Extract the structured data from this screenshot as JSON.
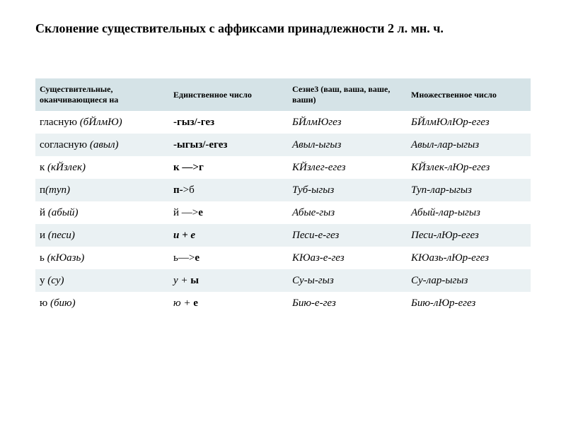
{
  "title": "Склонение существительных с аффиксами принадлежности 2 л. мн. ч.",
  "colors": {
    "header_bg": "#d5e3e7",
    "row_odd_bg": "#ffffff",
    "row_even_bg": "#eaf1f3",
    "text": "#000000"
  },
  "table": {
    "headers": [
      "Существительные, оканчивающиеся на",
      "Единственное  число",
      "Сезне3 (ваш, ваша, ваше, ваши)",
      "Множественное  число"
    ],
    "rows": [
      {
        "c0a": "гласную ",
        "c0b": "(бЙлмЮ)",
        "c1": "-гыз/-гез",
        "c2": "БЙлмЮгез",
        "c3": "БЙлмЮлЮр-егез"
      },
      {
        "c0a": "согласную ",
        "c0b": "(авыл)",
        "c1": "-ыгыз/-егез",
        "c2": "Авыл-ыгыз",
        "c3": "Авыл-лар-ыгыз"
      },
      {
        "c0a": "к ",
        "c0b": "(кЙзлек)",
        "c1": "к —>г",
        "c2": "КЙзлег-егез",
        "c3": "КЙзлек-лЮр-егез"
      },
      {
        "c0a": "п",
        "c0b": "(myn)",
        "c1a": "п-",
        "c1b": ">б",
        "c2": "Туб-ыгыз",
        "c3": "Туп-лар-ыгыз"
      },
      {
        "c0a": "й ",
        "c0b": "(абый)",
        "c1a": "й —>",
        "c1b": "е",
        "c2": "Абые-гыз",
        "c3": "Абый-лар-ыгыз"
      },
      {
        "c0a": "и ",
        "c0b": "(песи)",
        "c1": "и + е",
        "c2": "Песи-е-гез",
        "c3": "Песи-лЮр-егез"
      },
      {
        "c0a": "ь ",
        "c0b": "(кЮазь)",
        "c1a": "ь—>",
        "c1b": "е",
        "c2": "КЮаз-е-гез",
        "c3": "КЮазь-лЮр-егез"
      },
      {
        "c0a": "у ",
        "c0b": "(cy)",
        "c1a": "у + ",
        "c1b": "ы",
        "c2": "Су-ы-гыз",
        "c3": "Су-лар-ыгыз"
      },
      {
        "c0a": "ю ",
        "c0b": "(бию)",
        "c1a": "ю + ",
        "c1b": "е",
        "c2": "Бию-е-гез",
        "c3": "Бию-лЮр-егез"
      }
    ],
    "col_widths": [
      "27%",
      "24%",
      "24%",
      "25%"
    ]
  }
}
